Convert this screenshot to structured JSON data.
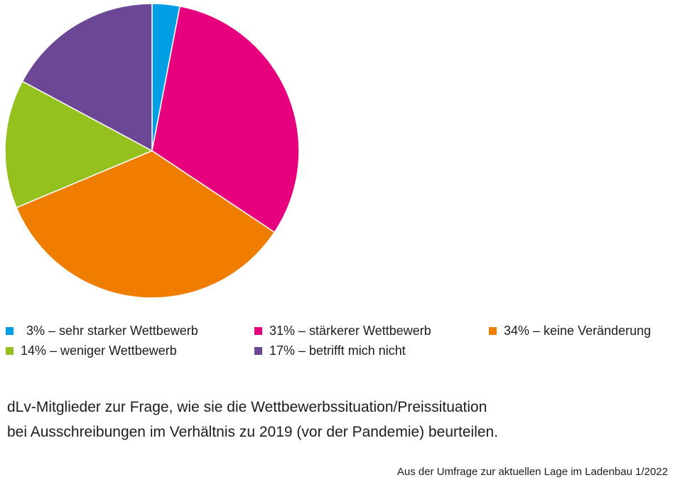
{
  "chart_data": {
    "type": "pie",
    "slices": [
      {
        "label": "3% – sehr starker Wettbewerb",
        "value": 3,
        "color": "#009fe3"
      },
      {
        "label": "31% – stärkerer Wettbewerb",
        "value": 31,
        "color": "#e6007e"
      },
      {
        "label": "34% – keine Veränderung",
        "value": 34,
        "color": "#ef7d00"
      },
      {
        "label": "14% – weniger Wettbewerb",
        "value": 14,
        "color": "#95c11f"
      },
      {
        "label": "17% – betrifft mich nicht",
        "value": 17,
        "color": "#6c4796"
      }
    ],
    "legend": "bottom",
    "caption": [
      "dLv-Mitglieder zur Frage, wie sie die Wettbewerbssituation/Preissituation",
      "bei Ausschreibungen im Verhältnis zu 2019 (vor der Pandemie) beurteilen."
    ],
    "source": "Aus der Umfrage zur aktuellen Lage im Ladenbau 1/2022"
  }
}
